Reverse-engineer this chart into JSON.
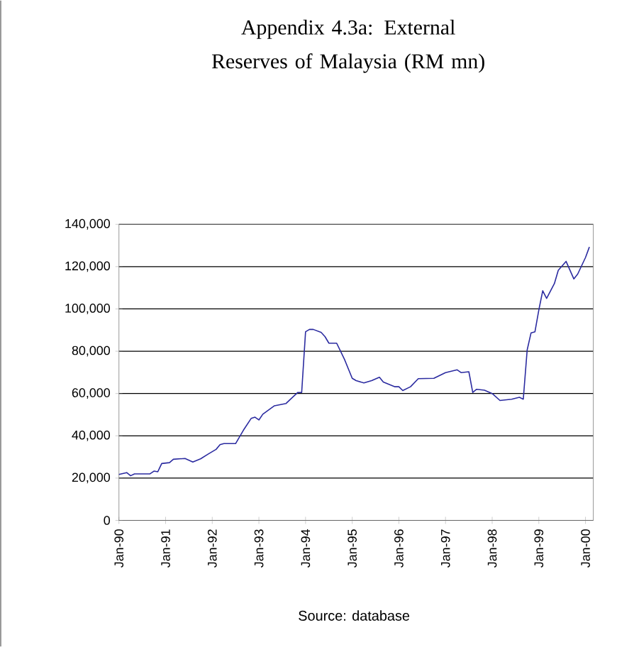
{
  "chart_data": {
    "type": "line",
    "title": "Appendix 4.3a: External Reserves of Malaysia (RM mn)",
    "x": [
      "1990-01",
      "1990-03",
      "1990-04",
      "1990-05",
      "1990-09",
      "1990-10",
      "1990-11",
      "1990-12",
      "1991-02",
      "1991-03",
      "1991-06",
      "1991-08",
      "1991-10",
      "1991-12",
      "1992-02",
      "1992-03",
      "1992-04",
      "1992-07",
      "1992-09",
      "1992-11",
      "1992-12",
      "1993-01",
      "1993-02",
      "1993-05",
      "1993-08",
      "1993-09",
      "1993-11",
      "1993-12",
      "1994-01",
      "1994-02",
      "1994-03",
      "1994-05",
      "1994-06",
      "1994-07",
      "1994-09",
      "1994-11",
      "1995-01",
      "1995-02",
      "1995-04",
      "1995-06",
      "1995-08",
      "1995-09",
      "1995-12",
      "1996-01",
      "1996-02",
      "1996-04",
      "1996-06",
      "1996-10",
      "1997-01",
      "1997-04",
      "1997-05",
      "1997-07",
      "1997-08",
      "1997-09",
      "1997-11",
      "1998-01",
      "1998-03",
      "1998-06",
      "1998-08",
      "1998-09",
      "1998-10",
      "1998-11",
      "1998-12",
      "1999-01",
      "1999-02",
      "1999-03",
      "1999-05",
      "1999-06",
      "1999-08",
      "1999-10",
      "1999-11",
      "2000-01",
      "2000-02"
    ],
    "series": [
      {
        "color": "#2b2ba0",
        "values": [
          21700,
          22600,
          21100,
          22000,
          22000,
          23300,
          23000,
          26900,
          27300,
          28900,
          29300,
          27600,
          29100,
          31400,
          33600,
          35800,
          36300,
          36300,
          42600,
          48200,
          48800,
          47500,
          50200,
          54200,
          55300,
          57100,
          60500,
          60500,
          89200,
          90300,
          90300,
          88900,
          86900,
          83800,
          83800,
          76200,
          67200,
          66100,
          65000,
          66100,
          67700,
          65400,
          63200,
          63200,
          61400,
          63200,
          67000,
          67200,
          69900,
          71200,
          69900,
          70300,
          60500,
          62000,
          61600,
          60000,
          56700,
          57300,
          58200,
          57300,
          80600,
          88700,
          89200,
          99500,
          108600,
          105000,
          112000,
          118300,
          122500,
          114200,
          116500,
          124300,
          129300
        ]
      }
    ],
    "xlim": [
      "1990-01",
      "2000-03"
    ],
    "xticks": [
      {
        "value": "1990-01",
        "label": "Jan-90"
      },
      {
        "value": "1991-01",
        "label": "Jan-91"
      },
      {
        "value": "1992-01",
        "label": "Jan-92"
      },
      {
        "value": "1993-01",
        "label": "Jan-93"
      },
      {
        "value": "1994-01",
        "label": "Jan-94"
      },
      {
        "value": "1995-01",
        "label": "Jan-95"
      },
      {
        "value": "1996-01",
        "label": "Jan-96"
      },
      {
        "value": "1997-01",
        "label": "Jan-97"
      },
      {
        "value": "1998-01",
        "label": "Jan-98"
      },
      {
        "value": "1999-01",
        "label": "Jan-99"
      },
      {
        "value": "2000-01",
        "label": "Jan-00"
      }
    ],
    "ylim": [
      0,
      140000
    ],
    "yticks": [
      0,
      {
        "value": 20000,
        "label": "20,000"
      },
      {
        "value": 40000,
        "label": "40,000"
      },
      {
        "value": 60000,
        "label": "60,000"
      },
      {
        "value": 80000,
        "label": "80,000"
      },
      {
        "value": 100000,
        "label": "100,000"
      },
      {
        "value": 120000,
        "label": "120,000"
      },
      {
        "value": 140000,
        "label": "140,000"
      }
    ],
    "grid": "y",
    "annotations": [
      "Source: database"
    ]
  }
}
